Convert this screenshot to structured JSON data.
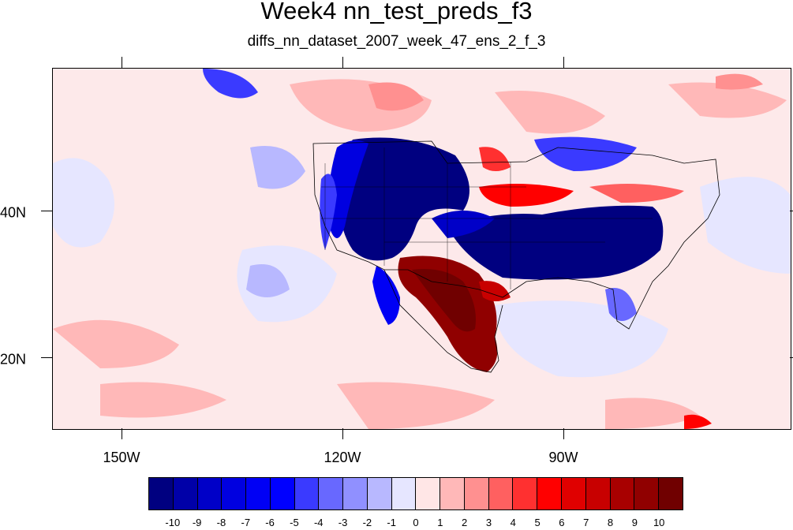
{
  "title": "Week4 nn_test_preds_f3",
  "subtitle": "diffs_nn_dataset_2007_week_47_ens_2_f_3",
  "x_labels": [
    "150W",
    "120W",
    "90W"
  ],
  "y_labels": [
    "40N",
    "20N"
  ],
  "colorbar": {
    "colors": [
      "#000080",
      "#0000a8",
      "#0000c8",
      "#0000e0",
      "#0000f5",
      "#0000ff",
      "#3a3aff",
      "#6868ff",
      "#9090ff",
      "#b8b8ff",
      "#e6e6ff",
      "#ffe6e6",
      "#ffb8b8",
      "#ff9090",
      "#ff6060",
      "#ff3030",
      "#ff0000",
      "#e00000",
      "#c80000",
      "#a80000",
      "#900000",
      "#700000"
    ],
    "labels": [
      "-10",
      "-9",
      "-8",
      "-7",
      "-6",
      "-5",
      "-4",
      "-3",
      "-2",
      "-1",
      "0",
      "1",
      "2",
      "3",
      "4",
      "5",
      "6",
      "7",
      "8",
      "9",
      "10"
    ]
  }
}
